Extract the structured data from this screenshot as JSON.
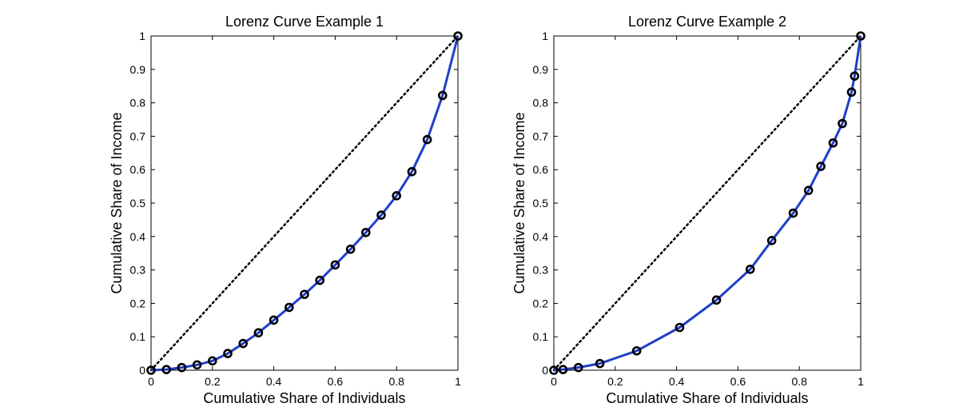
{
  "chart_data": [
    {
      "type": "line",
      "title": "Lorenz Curve Example 1",
      "xlabel": "Cumulative Share of Individuals",
      "ylabel": "Cumulative Share of Income",
      "xlim": [
        0,
        1
      ],
      "ylim": [
        0,
        1
      ],
      "xticks": [
        "0",
        "0.2",
        "0.4",
        "0.6",
        "0.8",
        "1"
      ],
      "yticks": [
        "0",
        "0.1",
        "0.2",
        "0.3",
        "0.4",
        "0.5",
        "0.6",
        "0.7",
        "0.8",
        "0.9",
        "1"
      ],
      "grid": false,
      "legend": "none",
      "series": [
        {
          "kind": "line-with-markers",
          "color": "#1f3fc9",
          "marker_color": "#000000",
          "x": [
            0,
            0.05,
            0.1,
            0.15,
            0.2,
            0.25,
            0.3,
            0.35,
            0.4,
            0.45,
            0.5,
            0.55,
            0.6,
            0.65,
            0.7,
            0.75,
            0.8,
            0.85,
            0.9,
            0.95,
            1.0
          ],
          "y": [
            0,
            0.002,
            0.008,
            0.016,
            0.028,
            0.05,
            0.08,
            0.112,
            0.15,
            0.188,
            0.227,
            0.269,
            0.315,
            0.362,
            0.412,
            0.464,
            0.522,
            0.594,
            0.69,
            0.822,
            1.0
          ]
        },
        {
          "kind": "equality-line",
          "color": "#000000",
          "x": [
            0,
            1
          ],
          "y": [
            0,
            1
          ]
        }
      ]
    },
    {
      "type": "line",
      "title": "Lorenz Curve Example 2",
      "xlabel": "Cumulative Share of Individuals",
      "ylabel": "Cumulative Share of Income",
      "xlim": [
        0,
        1
      ],
      "ylim": [
        0,
        1
      ],
      "xticks": [
        "0",
        "0.2",
        "0.4",
        "0.6",
        "0.8",
        "1"
      ],
      "yticks": [
        "0",
        "0.1",
        "0.2",
        "0.3",
        "0.4",
        "0.5",
        "0.6",
        "0.7",
        "0.8",
        "0.9",
        "1"
      ],
      "grid": false,
      "legend": "none",
      "series": [
        {
          "kind": "line-with-markers",
          "color": "#1f3fc9",
          "marker_color": "#000000",
          "x": [
            0,
            0.03,
            0.08,
            0.15,
            0.27,
            0.41,
            0.53,
            0.64,
            0.71,
            0.78,
            0.83,
            0.87,
            0.91,
            0.94,
            0.97,
            0.98,
            1.0
          ],
          "y": [
            0,
            0.002,
            0.008,
            0.02,
            0.058,
            0.128,
            0.21,
            0.302,
            0.388,
            0.47,
            0.538,
            0.61,
            0.68,
            0.738,
            0.832,
            0.88,
            1.0
          ]
        },
        {
          "kind": "equality-line",
          "color": "#000000",
          "x": [
            0,
            1
          ],
          "y": [
            0,
            1
          ]
        }
      ]
    }
  ]
}
